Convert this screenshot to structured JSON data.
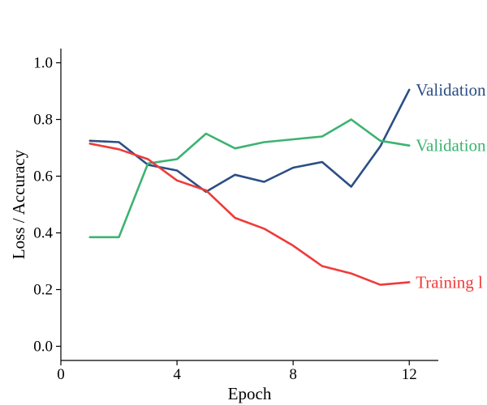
{
  "chart_data": {
    "type": "line",
    "title": "",
    "xlabel": "Epoch",
    "ylabel": "Loss / Accuracy",
    "xlim": [
      0,
      13
    ],
    "ylim": [
      -0.05,
      1.05
    ],
    "xticks": [
      0,
      4,
      8,
      12
    ],
    "xtick_labels": [
      "0",
      "4",
      "8",
      "12"
    ],
    "yticks": [
      0.0,
      0.2,
      0.4,
      0.6,
      0.8,
      1.0
    ],
    "ytick_labels": [
      "0.0",
      "0.2",
      "0.4",
      "0.6",
      "0.8",
      "1.0"
    ],
    "grid": false,
    "legend": "none (series labelled at line ends)",
    "x": [
      1,
      2,
      3,
      4,
      5,
      6,
      7,
      8,
      9,
      10,
      11,
      12
    ],
    "series": [
      {
        "name": "Validation",
        "label_shown": "Validation",
        "color": "#2c4e85",
        "values": [
          0.725,
          0.72,
          0.64,
          0.62,
          0.545,
          0.605,
          0.58,
          0.63,
          0.65,
          0.563,
          0.705,
          0.905
        ]
      },
      {
        "name": "Validation",
        "label_shown": "Validation",
        "color": "#3cb371",
        "values": [
          0.385,
          0.385,
          0.645,
          0.66,
          0.75,
          0.698,
          0.72,
          0.73,
          0.74,
          0.8,
          0.725,
          0.708
        ]
      },
      {
        "name": "Training l",
        "label_shown": "Training l",
        "color": "#f03a3a",
        "values": [
          0.715,
          0.695,
          0.66,
          0.585,
          0.55,
          0.453,
          0.415,
          0.355,
          0.283,
          0.257,
          0.217,
          0.226
        ]
      }
    ]
  }
}
